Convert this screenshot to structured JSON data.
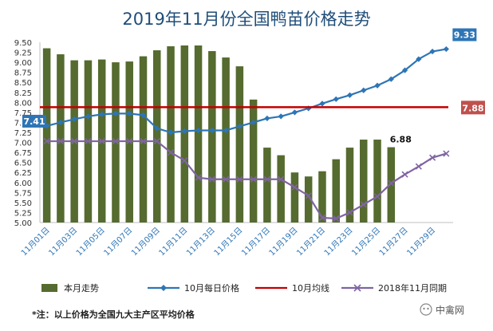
{
  "chart_data": {
    "type": "bar+line",
    "title": "2019年11月份全国鸭苗价格走势",
    "y_axis": {
      "min": 5.0,
      "max": 9.5,
      "step": 0.25,
      "ticks": [
        "5.00",
        "5.25",
        "5.50",
        "5.75",
        "6.00",
        "6.25",
        "6.50",
        "6.75",
        "7.00",
        "7.25",
        "7.50",
        "7.75",
        "8.00",
        "8.25",
        "8.50",
        "8.75",
        "9.00",
        "9.25",
        "9.50"
      ]
    },
    "x_axis": {
      "categories": [
        "11月01日",
        "11月02日",
        "11月03日",
        "11月04日",
        "11月05日",
        "11月06日",
        "11月07日",
        "11月08日",
        "11月09日",
        "11月10日",
        "11月11日",
        "11月12日",
        "11月13日",
        "11月14日",
        "11月15日",
        "11月16日",
        "11月17日",
        "11月18日",
        "11月19日",
        "11月20日",
        "11月21日",
        "11月22日",
        "11月23日",
        "11月24日",
        "11月25日",
        "11月26日",
        "11月27日",
        "11月28日",
        "11月29日",
        "11月30日"
      ],
      "tick_labels": [
        "11月01日",
        "11月03日",
        "11月05日",
        "11月07日",
        "11月09日",
        "11月11日",
        "11月13日",
        "11月15日",
        "11月17日",
        "11月19日",
        "11月21日",
        "11月23日",
        "11月25日",
        "11月27日",
        "11月29日"
      ]
    },
    "series": [
      {
        "name": "本月走势",
        "kind": "bar",
        "color": "#556B2F",
        "values": [
          9.35,
          9.2,
          9.05,
          9.05,
          9.07,
          9.0,
          9.02,
          9.15,
          9.3,
          9.4,
          9.42,
          9.42,
          9.28,
          9.12,
          8.9,
          8.07,
          6.87,
          6.68,
          6.25,
          6.15,
          6.28,
          6.58,
          6.87,
          7.07,
          7.07,
          6.88,
          null,
          null,
          null,
          null
        ]
      },
      {
        "name": "10月每日价格",
        "kind": "line",
        "color": "#2E75B6",
        "marker": "diamond",
        "values": [
          7.41,
          7.5,
          7.58,
          7.65,
          7.7,
          7.72,
          7.72,
          7.68,
          7.35,
          7.25,
          7.28,
          7.3,
          7.3,
          7.3,
          7.4,
          7.5,
          7.6,
          7.65,
          7.75,
          7.85,
          7.97,
          8.08,
          8.18,
          8.3,
          8.42,
          8.58,
          8.8,
          9.08,
          9.27,
          9.33
        ]
      },
      {
        "name": "10月均线",
        "kind": "line",
        "color": "#C00000",
        "values": [
          7.88,
          7.88,
          7.88,
          7.88,
          7.88,
          7.88,
          7.88,
          7.88,
          7.88,
          7.88,
          7.88,
          7.88,
          7.88,
          7.88,
          7.88,
          7.88,
          7.88,
          7.88,
          7.88,
          7.88,
          7.88,
          7.88,
          7.88,
          7.88,
          7.88,
          7.88,
          7.88,
          7.88,
          7.88,
          7.88
        ]
      },
      {
        "name": "2018年11月同期",
        "kind": "line",
        "color": "#8064A2",
        "marker": "x",
        "values": [
          7.03,
          7.03,
          7.03,
          7.03,
          7.03,
          7.03,
          7.03,
          7.03,
          7.03,
          6.75,
          6.55,
          6.12,
          6.08,
          6.08,
          6.08,
          6.08,
          6.08,
          6.08,
          5.88,
          5.67,
          5.12,
          5.1,
          5.25,
          5.45,
          5.65,
          5.98,
          6.2,
          6.4,
          6.62,
          6.72
        ]
      }
    ],
    "data_labels": [
      {
        "text": "7.41",
        "series": 1,
        "index": 0,
        "style": "blue-box"
      },
      {
        "text": "9.33",
        "series": 1,
        "index": 29,
        "style": "blue-box"
      },
      {
        "text": "7.88",
        "series": 2,
        "index": 29,
        "style": "red-box"
      },
      {
        "text": "6.88",
        "series": 0,
        "index": 25,
        "style": "plain"
      }
    ],
    "legend_position": "bottom",
    "grid": false
  },
  "footer": {
    "note": "*注：以上价格为全国九大主产区平均价格",
    "watermark": "中禽网"
  }
}
